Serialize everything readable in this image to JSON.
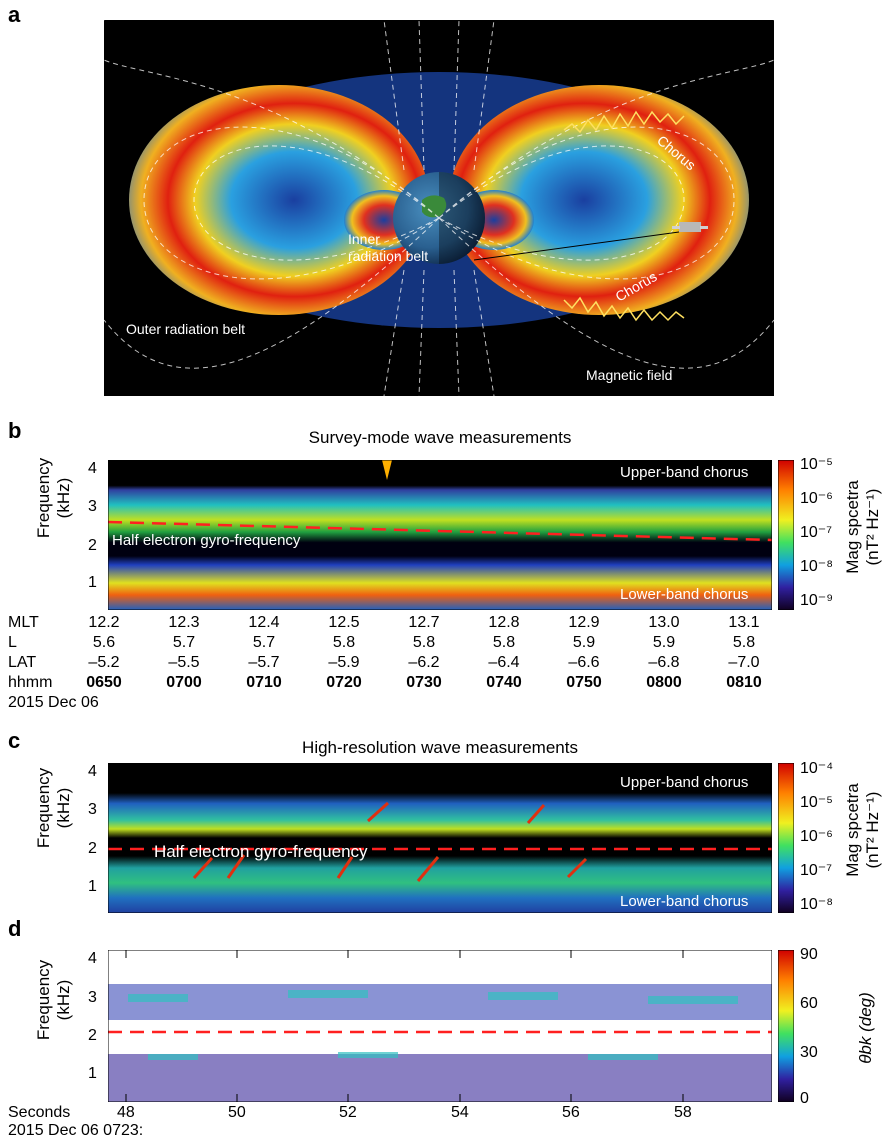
{
  "panel_a": {
    "letter": "a",
    "labels": {
      "chorus_top": "Chorus",
      "chorus_bottom": "Chorus",
      "inner_belt_1": "Inner",
      "inner_belt_2": "radiation belt",
      "outer_belt": "Outer radiation belt",
      "magnetic_field": "Magnetic field"
    }
  },
  "panel_b": {
    "letter": "b",
    "title": "Survey-mode wave measurements",
    "ylabel_1": "Frequency",
    "ylabel_2": "(kHz)",
    "yticks": [
      "4",
      "3",
      "2",
      "1"
    ],
    "upper_label": "Upper-band chorus",
    "lower_label": "Lower-band chorus",
    "half_gyro_label": "Half electron gyro-frequency",
    "colorbar": {
      "label_1": "Mag spcetra",
      "label_2": "(nT² Hz⁻¹)",
      "ticks": [
        "10⁻⁵",
        "10⁻⁶",
        "10⁻⁷",
        "10⁻⁸",
        "10⁻⁹"
      ]
    },
    "table": {
      "rows": [
        {
          "name": "MLT",
          "values": [
            "12.2",
            "12.3",
            "12.4",
            "12.5",
            "12.7",
            "12.8",
            "12.9",
            "13.0",
            "13.1"
          ]
        },
        {
          "name": "L",
          "values": [
            "5.6",
            "5.7",
            "5.7",
            "5.8",
            "5.8",
            "5.8",
            "5.9",
            "5.9",
            "5.8"
          ]
        },
        {
          "name": "LAT",
          "values": [
            "–5.2",
            "–5.5",
            "–5.7",
            "–5.9",
            "–6.2",
            "–6.4",
            "–6.6",
            "–6.8",
            "–7.0"
          ]
        },
        {
          "name": "hhmm",
          "values": [
            "0650",
            "0700",
            "0710",
            "0720",
            "0730",
            "0740",
            "0750",
            "0800",
            "0810"
          ]
        }
      ],
      "date": "2015 Dec 06"
    }
  },
  "panel_c": {
    "letter": "c",
    "title": "High-resolution wave measurements",
    "ylabel_1": "Frequency",
    "ylabel_2": "(kHz)",
    "yticks": [
      "4",
      "3",
      "2",
      "1"
    ],
    "upper_label": "Upper-band chorus",
    "lower_label": "Lower-band chorus",
    "half_gyro_label": "Half electron gyro-frequency",
    "colorbar": {
      "label_1": "Mag spcetra",
      "label_2": "(nT² Hz⁻¹)",
      "ticks": [
        "10⁻⁴",
        "10⁻⁵",
        "10⁻⁶",
        "10⁻⁷",
        "10⁻⁸"
      ]
    }
  },
  "panel_d": {
    "letter": "d",
    "ylabel_1": "Frequency",
    "ylabel_2": "(kHz)",
    "yticks": [
      "4",
      "3",
      "2",
      "1"
    ],
    "xlabel": "Seconds",
    "xticks": [
      "48",
      "50",
      "52",
      "54",
      "56",
      "58"
    ],
    "date": "2015 Dec 06 0723:",
    "colorbar": {
      "label": "θbk (deg)",
      "ticks": [
        "90",
        "60",
        "30",
        "0"
      ]
    }
  },
  "chart_data": [
    {
      "type": "heatmap",
      "title": "Survey-mode wave measurements",
      "ylabel": "Frequency (kHz)",
      "ylim": [
        0.5,
        4.3
      ],
      "x_ticks": [
        "0650",
        "0700",
        "0710",
        "0720",
        "0730",
        "0740",
        "0750",
        "0800",
        "0810"
      ],
      "colorbar_label": "Mag spcetra (nT² Hz⁻¹)",
      "colorbar_range": [
        "10⁻⁹",
        "10⁻⁵"
      ],
      "half_gyro_kHz": [
        2.6,
        2.3
      ]
    },
    {
      "type": "heatmap",
      "title": "High-resolution wave measurements",
      "ylabel": "Frequency (kHz)",
      "ylim": [
        0.5,
        4.3
      ],
      "colorbar_label": "Mag spcetra (nT² Hz⁻¹)",
      "colorbar_range": [
        "10⁻⁸",
        "10⁻⁴"
      ],
      "half_gyro_kHz": 2.2
    },
    {
      "type": "heatmap",
      "ylabel": "Frequency (kHz)",
      "xlabel": "Seconds",
      "x_ticks": [
        48,
        50,
        52,
        54,
        56,
        58
      ],
      "ylim": [
        0.5,
        4.3
      ],
      "colorbar_label": "θbk (deg)",
      "colorbar_range": [
        0,
        90
      ],
      "half_gyro_kHz": 2.2
    }
  ],
  "colors": {
    "half_gyro_line": "#ff2020",
    "arrow": "#ffb000"
  }
}
